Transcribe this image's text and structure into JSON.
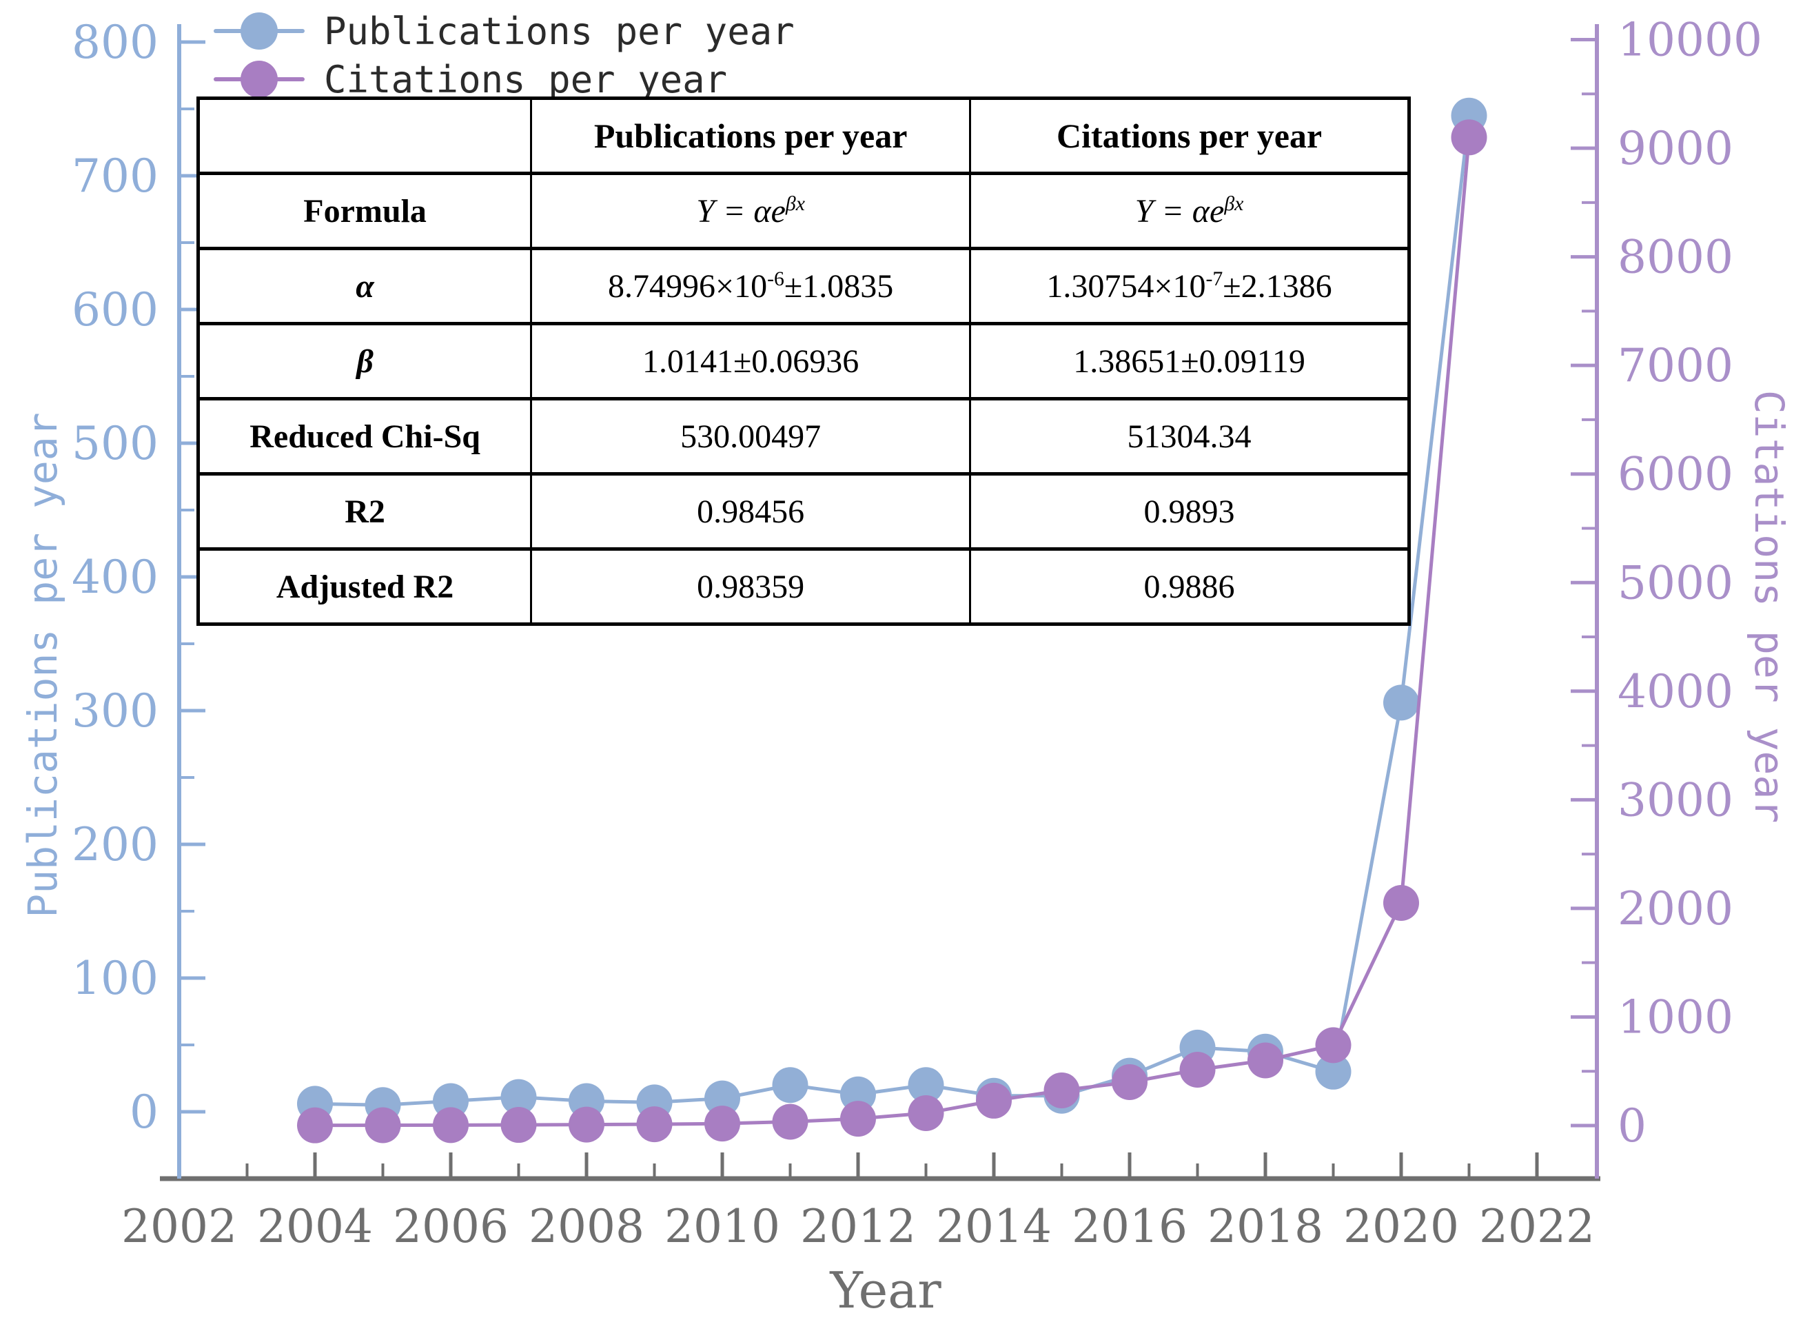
{
  "figure": {
    "legend": {
      "items": [
        {
          "label": "Publications per year",
          "color": "#92AFD6"
        },
        {
          "label": "Citations per year",
          "color": "#A87EC2"
        }
      ],
      "text_color": "#2b2b2b"
    },
    "axes": {
      "left": {
        "title": "Publications per year",
        "color": "#8FAED9",
        "major_ticks": [
          0,
          100,
          200,
          300,
          400,
          500,
          600,
          700,
          800
        ]
      },
      "right": {
        "title": "Citations per year",
        "color": "#A98FC9",
        "major_ticks": [
          0,
          1000,
          2000,
          3000,
          4000,
          5000,
          6000,
          7000,
          8000,
          9000,
          10000
        ]
      },
      "bottom": {
        "title": "Year",
        "color": "#6F6F6F",
        "major_ticks": [
          2002,
          2004,
          2006,
          2008,
          2010,
          2012,
          2014,
          2016,
          2018,
          2020,
          2022
        ]
      }
    },
    "table": {
      "headers": [
        "",
        "Publications per year",
        "Citations per year"
      ],
      "rows": {
        "formula": {
          "label": "Formula",
          "pub_base": "Y = αe",
          "pub_sup": "βx",
          "cit_base": "Y = αe",
          "cit_sup": "βx"
        },
        "alpha": {
          "label": "α",
          "pub_base": "8.74996×10",
          "pub_sup": "-6",
          "pub_rest": "±1.0835",
          "cit_base": "1.30754×10",
          "cit_sup": "-7",
          "cit_rest": "±2.1386"
        },
        "beta": {
          "label": "β",
          "pub": "1.0141±0.06936",
          "cit": "1.38651±0.09119"
        },
        "chisq": {
          "label": "Reduced Chi-Sq",
          "pub": "530.00497",
          "cit": "51304.34"
        },
        "r2": {
          "label": "R2",
          "pub": "0.98456",
          "cit": "0.9893"
        },
        "adjr2": {
          "label": "Adjusted R2",
          "pub": "0.98359",
          "cit": "0.9886"
        }
      }
    }
  },
  "chart_data": {
    "type": "line",
    "title": "",
    "xlabel": "Year",
    "ylabel_left": "Publications per year",
    "ylabel_right": "Citations per year",
    "xlim": [
      2002,
      2022.9
    ],
    "ylim_left": [
      0,
      800
    ],
    "ylim_right": [
      0,
      10000
    ],
    "grid": false,
    "legend_position": "top-left",
    "x": [
      2004,
      2005,
      2006,
      2007,
      2008,
      2009,
      2010,
      2011,
      2012,
      2013,
      2014,
      2015,
      2016,
      2017,
      2018,
      2019,
      2020,
      2021
    ],
    "series": [
      {
        "name": "Publications per year",
        "axis": "left",
        "color": "#92AFD6",
        "marker": "circle",
        "values": [
          6,
          5,
          8,
          11,
          8,
          7,
          10,
          20,
          13,
          20,
          12,
          12,
          27,
          48,
          45,
          30,
          306,
          745
        ]
      },
      {
        "name": "Citations per year",
        "axis": "right",
        "color": "#A87EC2",
        "marker": "circle",
        "values": [
          2,
          3,
          4,
          6,
          9,
          12,
          18,
          35,
          63,
          114,
          229,
          324,
          400,
          514,
          600,
          740,
          2050,
          9100
        ]
      }
    ]
  }
}
